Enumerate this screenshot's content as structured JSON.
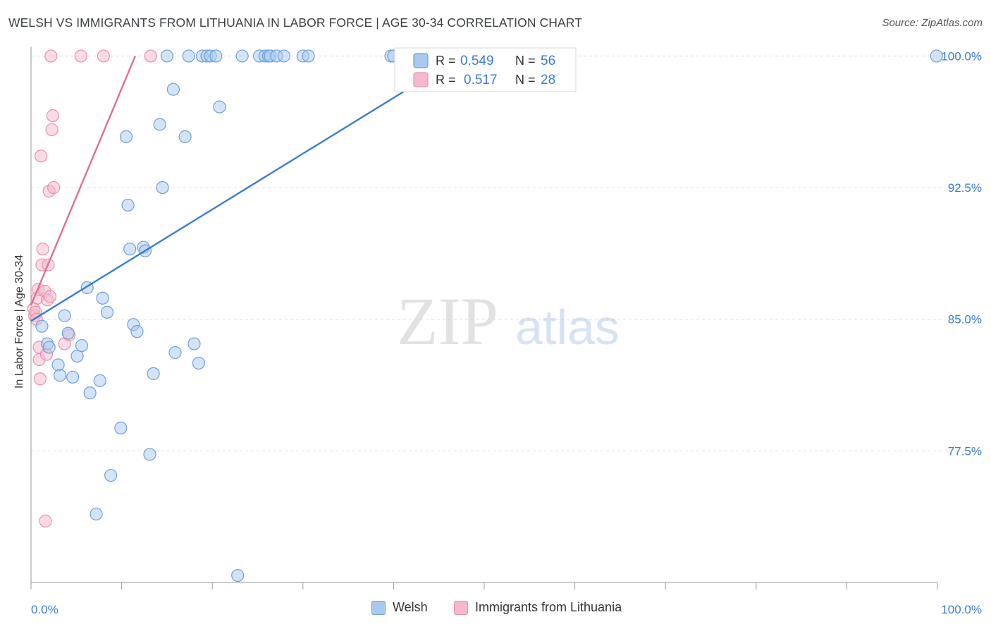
{
  "title": "WELSH VS IMMIGRANTS FROM LITHUANIA IN LABOR FORCE | AGE 30-34 CORRELATION CHART",
  "source": "Source: ZipAtlas.com",
  "watermark": {
    "zip": "ZIP",
    "atlas": "atlas"
  },
  "colors": {
    "welsh_fill": "#a9c9f0",
    "welsh_stroke": "#6f9fd8",
    "welsh_line": "#3a7bd5",
    "lith_fill": "#f6b8cc",
    "lith_stroke": "#e890ae",
    "lith_line": "#e06d9a",
    "tick_label": "#3a7bd5",
    "grid": "#dddddd"
  },
  "legend_stats": [
    {
      "r_label": "R =",
      "r_value": "0.549",
      "n_label": "N =",
      "n_value": "56"
    },
    {
      "r_label": "R =",
      "r_value": "0.517",
      "n_label": "N =",
      "n_value": "28"
    }
  ],
  "chart_data": {
    "type": "scatter",
    "title": "WELSH VS IMMIGRANTS FROM LITHUANIA IN LABOR FORCE | AGE 30-34 CORRELATION CHART",
    "xlabel": "",
    "ylabel": "In Labor Force | Age 30-34",
    "xlim": [
      0,
      100
    ],
    "ylim": [
      70.0,
      100.7
    ],
    "x_tick_labels": [
      "0.0%",
      "100.0%"
    ],
    "y_ticks": [
      77.5,
      85.0,
      92.5,
      100.0
    ],
    "y_tick_labels": [
      "77.5%",
      "85.0%",
      "92.5%",
      "100.0%"
    ],
    "grid": true,
    "legend_position": "top-center",
    "series": [
      {
        "name": "Welsh",
        "r": 0.549,
        "n": 56,
        "trend": {
          "x": [
            0.0,
            47.5
          ],
          "y": [
            84.9,
            100.0
          ]
        },
        "points": [
          [
            1.2,
            84.6
          ],
          [
            1.8,
            83.6
          ],
          [
            2.0,
            83.4
          ],
          [
            3.0,
            82.4
          ],
          [
            3.2,
            81.8
          ],
          [
            3.7,
            85.2
          ],
          [
            4.1,
            84.2
          ],
          [
            4.6,
            81.7
          ],
          [
            5.1,
            82.9
          ],
          [
            5.6,
            83.5
          ],
          [
            6.2,
            86.8
          ],
          [
            6.5,
            80.8
          ],
          [
            7.2,
            73.9
          ],
          [
            7.6,
            81.5
          ],
          [
            7.9,
            86.2
          ],
          [
            8.4,
            85.4
          ],
          [
            8.8,
            76.1
          ],
          [
            9.9,
            78.8
          ],
          [
            10.5,
            95.4
          ],
          [
            10.7,
            91.5
          ],
          [
            10.9,
            89.0
          ],
          [
            11.3,
            84.7
          ],
          [
            11.7,
            84.3
          ],
          [
            12.4,
            89.1
          ],
          [
            12.6,
            88.9
          ],
          [
            13.1,
            77.3
          ],
          [
            13.5,
            81.9
          ],
          [
            14.2,
            96.1
          ],
          [
            14.5,
            92.5
          ],
          [
            15.0,
            100.0
          ],
          [
            15.7,
            98.1
          ],
          [
            15.9,
            83.1
          ],
          [
            17.0,
            95.4
          ],
          [
            17.4,
            100.0
          ],
          [
            18.0,
            83.6
          ],
          [
            18.5,
            82.5
          ],
          [
            18.9,
            100.0
          ],
          [
            19.4,
            100.0
          ],
          [
            19.8,
            100.0
          ],
          [
            20.4,
            100.0
          ],
          [
            20.8,
            97.1
          ],
          [
            22.8,
            70.4
          ],
          [
            23.3,
            100.0
          ],
          [
            25.2,
            100.0
          ],
          [
            25.8,
            100.0
          ],
          [
            26.2,
            100.0
          ],
          [
            26.4,
            100.0
          ],
          [
            27.1,
            100.0
          ],
          [
            27.9,
            100.0
          ],
          [
            30.0,
            100.0
          ],
          [
            30.6,
            100.0
          ],
          [
            39.7,
            100.0
          ],
          [
            40.0,
            100.0
          ],
          [
            41.1,
            100.0
          ],
          [
            41.8,
            100.0
          ],
          [
            99.9,
            100.0
          ]
        ]
      },
      {
        "name": "Immigrants from Lithuania",
        "r": 0.517,
        "n": 28,
        "trend": {
          "x": [
            0.0,
            11.5
          ],
          "y": [
            85.8,
            100.0
          ]
        },
        "points": [
          [
            0.3,
            85.6
          ],
          [
            0.4,
            85.2
          ],
          [
            0.5,
            85.4
          ],
          [
            0.6,
            85.0
          ],
          [
            0.7,
            86.2
          ],
          [
            0.8,
            86.7
          ],
          [
            0.9,
            83.4
          ],
          [
            0.9,
            82.7
          ],
          [
            1.0,
            81.6
          ],
          [
            1.1,
            94.3
          ],
          [
            1.2,
            88.1
          ],
          [
            1.3,
            89.0
          ],
          [
            1.5,
            86.6
          ],
          [
            1.6,
            73.5
          ],
          [
            1.7,
            83.0
          ],
          [
            1.8,
            86.1
          ],
          [
            1.9,
            88.1
          ],
          [
            2.0,
            92.3
          ],
          [
            2.1,
            86.3
          ],
          [
            2.2,
            100.0
          ],
          [
            2.3,
            95.8
          ],
          [
            2.4,
            96.6
          ],
          [
            2.5,
            92.5
          ],
          [
            3.7,
            83.6
          ],
          [
            4.2,
            84.1
          ],
          [
            5.5,
            100.0
          ],
          [
            8.0,
            100.0
          ],
          [
            13.2,
            100.0
          ]
        ]
      }
    ]
  }
}
